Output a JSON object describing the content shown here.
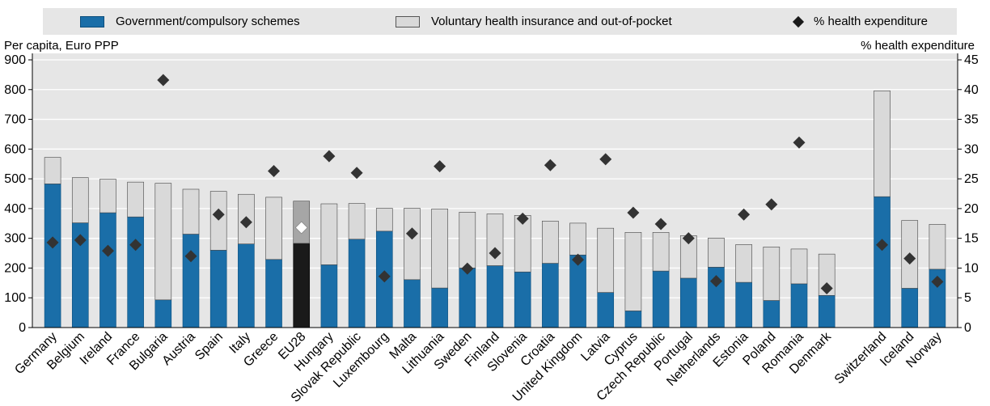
{
  "legend": {
    "gov_label": "Government/compulsory schemes",
    "vol_label": "Voluntary health insurance and out-of-pocket",
    "pct_label": "% health expenditure"
  },
  "colors": {
    "gov": "#1a6ea8",
    "vol": "#d9d9d9",
    "marker": "#333333",
    "eu_gov": "#1a1a1a",
    "eu_vol": "#a6a6a6",
    "eu_marker": "#ffffff",
    "legend_bg": "#e6e6e6"
  },
  "chart_data": {
    "type": "bar",
    "stacked": true,
    "left_unit_label": "Per capita, Euro PPP",
    "right_unit_label": "% health expenditure",
    "ylim": [
      0,
      900
    ],
    "yticks": [
      0,
      100,
      200,
      300,
      400,
      500,
      600,
      700,
      800,
      900
    ],
    "y2lim": [
      0,
      45
    ],
    "y2ticks": [
      0,
      5,
      10,
      15,
      20,
      25,
      30,
      35,
      40,
      45
    ],
    "categories": [
      "Germany",
      "Belgium",
      "Ireland",
      "France",
      "Bulgaria",
      "Austria",
      "Spain",
      "Italy",
      "Greece",
      "EU28",
      "Hungary",
      "Slovak Republic",
      "Luxembourg",
      "Malta",
      "Lithuania",
      "Sweden",
      "Finland",
      "Slovenia",
      "Croatia",
      "United Kingdom",
      "Latvia",
      "Cyprus",
      "Czech Republic",
      "Portugal",
      "Netherlands",
      "Estonia",
      "Poland",
      "Romania",
      "Denmark",
      "",
      "Switzerland",
      "Iceland",
      "Norway"
    ],
    "highlight": "EU28",
    "series": [
      {
        "name": "Government/compulsory schemes",
        "axis": "left",
        "values": [
          483,
          352,
          386,
          372,
          93,
          314,
          260,
          281,
          229,
          283,
          211,
          297,
          324,
          161,
          133,
          200,
          208,
          187,
          216,
          244,
          118,
          56,
          190,
          166,
          203,
          152,
          91,
          147,
          108,
          null,
          440,
          132,
          196
        ]
      },
      {
        "name": "Voluntary health insurance and out-of-pocket",
        "axis": "left",
        "values": [
          89,
          152,
          113,
          117,
          392,
          151,
          198,
          167,
          209,
          142,
          205,
          120,
          77,
          240,
          266,
          188,
          174,
          190,
          142,
          107,
          216,
          264,
          130,
          143,
          98,
          127,
          180,
          117,
          139,
          null,
          356,
          228,
          151
        ]
      },
      {
        "name": "% health expenditure",
        "axis": "right",
        "type": "scatter",
        "values": [
          14.3,
          14.7,
          12.9,
          13.9,
          41.6,
          12.0,
          19.0,
          17.7,
          26.3,
          16.8,
          28.8,
          26.0,
          8.6,
          15.8,
          27.1,
          9.9,
          12.5,
          18.3,
          27.3,
          11.4,
          28.3,
          19.3,
          17.4,
          15.0,
          7.8,
          19.0,
          20.7,
          31.1,
          6.6,
          null,
          13.9,
          11.6,
          7.7
        ]
      }
    ]
  }
}
